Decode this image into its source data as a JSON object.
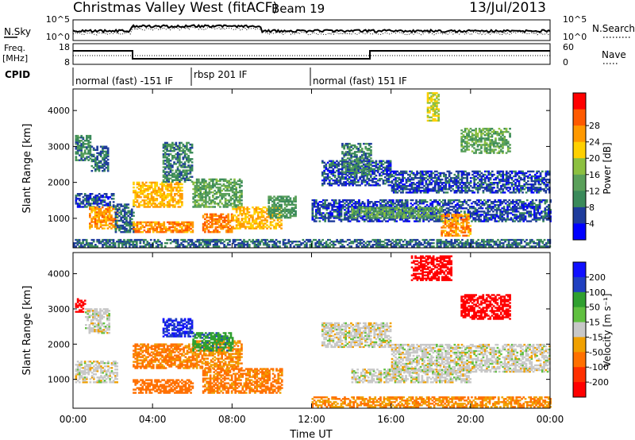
{
  "header": {
    "title": "Christmas Valley West (fitACF)",
    "beam": "Beam 19",
    "date": "13/Jul/2013"
  },
  "noise_panel": {
    "left_label": "N.Sky",
    "right_label": "N.Search",
    "left_ticks": [
      "10^5",
      "10^0"
    ],
    "right_ticks": [
      "10^5",
      "10^0"
    ]
  },
  "freq_panel": {
    "left_label_line1": "Freq.",
    "left_label_line2": "[MHz]",
    "left_ticks": [
      "18",
      "8"
    ],
    "right_label": "Nave",
    "right_ticks": [
      "60",
      "0"
    ]
  },
  "cpid": {
    "label": "CPID",
    "segments": [
      {
        "label": "normal (fast) -151 IF",
        "start_h": 0,
        "end_h": 6
      },
      {
        "label": "rbsp 201 IF",
        "start_h": 6,
        "end_h": 12
      },
      {
        "label": "normal (fast) 151 IF",
        "start_h": 12,
        "end_h": 24
      }
    ]
  },
  "colors": {
    "power_scale": [
      "#0000ff",
      "#1e3c9c",
      "#3a8a5a",
      "#5aa05a",
      "#8cc040",
      "#ffd000",
      "#ff9900",
      "#ff5a00",
      "#ff0000"
    ],
    "velocity_scale": [
      "#1010ff",
      "#2040c0",
      "#30a030",
      "#60c040",
      "#c8c8c8",
      "#f0a000",
      "#ff7000",
      "#ff3000",
      "#ff0000"
    ]
  },
  "chart_data": [
    {
      "type": "heatmap",
      "name": "power",
      "ylabel": "Slant Range [km]",
      "xlabel": "Time UT",
      "xlim": [
        0,
        24
      ],
      "ylim": [
        180,
        4600
      ],
      "x_ticks": [
        "00:00",
        "04:00",
        "08:00",
        "12:00",
        "16:00",
        "20:00",
        "00:00"
      ],
      "y_ticks": [
        1000,
        2000,
        3000,
        4000
      ],
      "colorbar": {
        "label": "Power [dB]",
        "ticks": [
          "4",
          "8",
          "12",
          "16",
          "20",
          "24",
          "28"
        ]
      },
      "regions": [
        {
          "t0": 0.1,
          "t1": 0.9,
          "r0": 2600,
          "r1": 3300,
          "value": 10
        },
        {
          "t0": 0.9,
          "t1": 1.8,
          "r0": 2300,
          "r1": 3000,
          "value": 8
        },
        {
          "t0": 0.1,
          "t1": 2.0,
          "r0": 1300,
          "r1": 1700,
          "value": 6
        },
        {
          "t0": 0.8,
          "t1": 2.2,
          "r0": 700,
          "r1": 1300,
          "value": 26
        },
        {
          "t0": 2.1,
          "t1": 3.0,
          "r0": 600,
          "r1": 1400,
          "value": 8
        },
        {
          "t0": 3.0,
          "t1": 5.5,
          "r0": 1300,
          "r1": 2000,
          "value": 24
        },
        {
          "t0": 3.0,
          "t1": 6.0,
          "r0": 600,
          "r1": 900,
          "value": 27
        },
        {
          "t0": 6.0,
          "t1": 8.5,
          "r0": 1300,
          "r1": 2100,
          "value": 14
        },
        {
          "t0": 6.5,
          "t1": 8.0,
          "r0": 600,
          "r1": 1100,
          "value": 28
        },
        {
          "t0": 8.0,
          "t1": 10.5,
          "r0": 700,
          "r1": 1300,
          "value": 24
        },
        {
          "t0": 9.8,
          "t1": 11.2,
          "r0": 1000,
          "r1": 1600,
          "value": 12
        },
        {
          "t0": 4.5,
          "t1": 6.0,
          "r0": 2000,
          "r1": 3100,
          "value": 10
        },
        {
          "t0": 0.0,
          "t1": 24.0,
          "r0": 200,
          "r1": 400,
          "value": 8
        },
        {
          "t0": 12.5,
          "t1": 16.0,
          "r0": 1900,
          "r1": 2600,
          "value": 6
        },
        {
          "t0": 13.5,
          "t1": 15.0,
          "r0": 2200,
          "r1": 3100,
          "value": 10
        },
        {
          "t0": 12.0,
          "t1": 24.0,
          "r0": 900,
          "r1": 1500,
          "value": 6
        },
        {
          "t0": 14.0,
          "t1": 18.5,
          "r0": 1000,
          "r1": 1300,
          "value": 14
        },
        {
          "t0": 18.5,
          "t1": 20.0,
          "r0": 500,
          "r1": 1100,
          "value": 27
        },
        {
          "t0": 17.8,
          "t1": 18.4,
          "r0": 3700,
          "r1": 4500,
          "value": 20
        },
        {
          "t0": 19.5,
          "t1": 22.0,
          "r0": 2800,
          "r1": 3500,
          "value": 14
        },
        {
          "t0": 16.0,
          "t1": 24.0,
          "r0": 1700,
          "r1": 2300,
          "value": 6
        }
      ]
    },
    {
      "type": "heatmap",
      "name": "velocity",
      "ylabel": "Slant Range [km]",
      "xlabel": "Time UT",
      "xlim": [
        0,
        24
      ],
      "ylim": [
        180,
        4600
      ],
      "x_ticks": [
        "00:00",
        "04:00",
        "08:00",
        "12:00",
        "16:00",
        "20:00",
        "00:00"
      ],
      "y_ticks": [
        1000,
        2000,
        3000,
        4000
      ],
      "colorbar": {
        "label": "Velocity [m s⁻¹]",
        "ticks": [
          "200",
          "100",
          "50",
          "15",
          "-15",
          "-50",
          "-100",
          "-200"
        ]
      },
      "regions": [
        {
          "t0": 0.1,
          "t1": 0.6,
          "r0": 2900,
          "r1": 3300,
          "value": -180
        },
        {
          "t0": 0.6,
          "t1": 1.8,
          "r0": 2300,
          "r1": 3000,
          "value": 0
        },
        {
          "t0": 0.1,
          "t1": 2.2,
          "r0": 900,
          "r1": 1500,
          "value": 0
        },
        {
          "t0": 3.0,
          "t1": 6.0,
          "r0": 1300,
          "r1": 2000,
          "value": -60
        },
        {
          "t0": 3.0,
          "t1": 6.0,
          "r0": 600,
          "r1": 1000,
          "value": -70
        },
        {
          "t0": 6.0,
          "t1": 8.5,
          "r0": 1300,
          "r1": 2100,
          "value": -50
        },
        {
          "t0": 6.0,
          "t1": 8.0,
          "r0": 1800,
          "r1": 2300,
          "value": 60
        },
        {
          "t0": 6.5,
          "t1": 10.5,
          "r0": 600,
          "r1": 1300,
          "value": -60
        },
        {
          "t0": 4.5,
          "t1": 6.0,
          "r0": 2200,
          "r1": 2700,
          "value": 150
        },
        {
          "t0": 12.0,
          "t1": 24.0,
          "r0": 200,
          "r1": 500,
          "value": -50
        },
        {
          "t0": 12.5,
          "t1": 16.0,
          "r0": 1900,
          "r1": 2600,
          "value": 0
        },
        {
          "t0": 14.0,
          "t1": 20.0,
          "r0": 900,
          "r1": 1300,
          "value": 0
        },
        {
          "t0": 16.0,
          "t1": 24.0,
          "r0": 1200,
          "r1": 2000,
          "value": 0
        },
        {
          "t0": 17.0,
          "t1": 19.0,
          "r0": 3800,
          "r1": 4500,
          "value": -200
        },
        {
          "t0": 19.5,
          "t1": 22.0,
          "r0": 2700,
          "r1": 3400,
          "value": -180
        }
      ]
    }
  ]
}
